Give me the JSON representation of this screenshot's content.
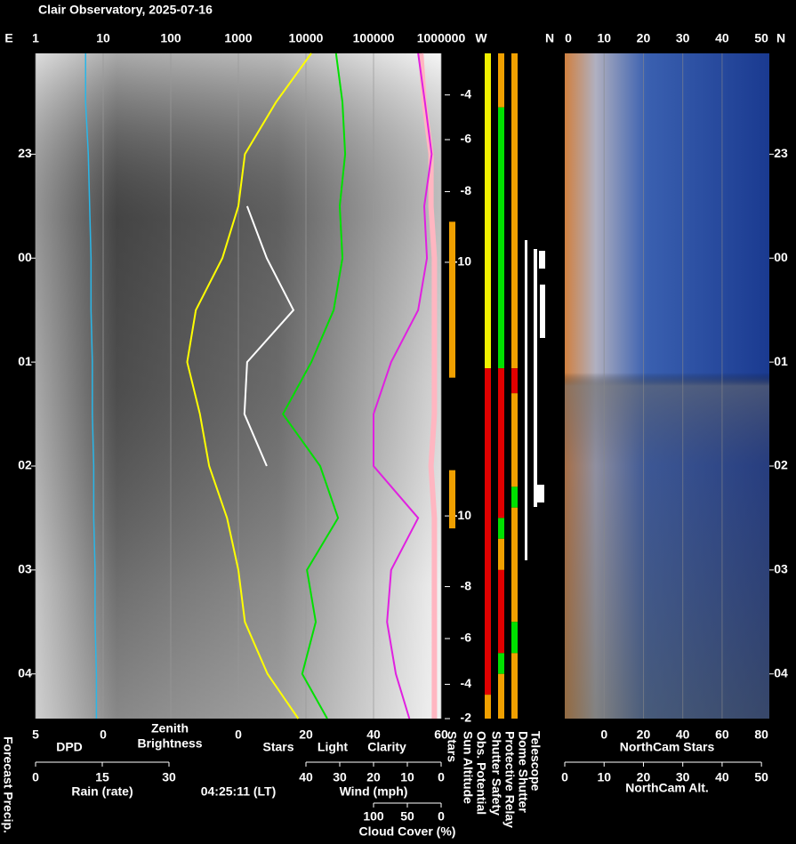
{
  "title": "Clair Observatory, 2025-07-16",
  "forecast_label": "Forecast Precip.",
  "time_label": "04:25:11 (LT)",
  "main": {
    "left_label": "E",
    "xlim": [
      1,
      1000000
    ],
    "log_x": true,
    "xticks": [
      1,
      10,
      100,
      1000,
      10000,
      100000,
      1000000
    ],
    "time_lim": [
      22.03,
      28.43
    ],
    "time_ticks": [
      {
        "value": 23,
        "label": "23"
      },
      {
        "value": 24,
        "label": "00"
      },
      {
        "value": 25,
        "label": "01"
      },
      {
        "value": 26,
        "label": "02"
      },
      {
        "value": 27,
        "label": "03"
      },
      {
        "value": 28,
        "label": "04"
      }
    ],
    "times": [
      22.03,
      22.5,
      23.0,
      23.5,
      24.0,
      24.5,
      25.0,
      25.5,
      26.0,
      26.5,
      27.0,
      27.5,
      28.0,
      28.43
    ]
  },
  "zenith": {
    "label": [
      "Zenith",
      "Brightness"
    ],
    "color": "#ffff00",
    "values": [
      12000,
      3600,
      1250,
      1000,
      580,
      235,
      175,
      270,
      370,
      680,
      1000,
      1250,
      2700,
      7700
    ]
  },
  "dpd": {
    "label": "DPD",
    "color": "#29b6e8",
    "lim": [
      5,
      0
    ],
    "ticks": [
      5,
      0
    ],
    "values": [
      1.3,
      1.3,
      1.1,
      1.0,
      0.9,
      0.9,
      0.8,
      0.8,
      0.7,
      0.7,
      0.6,
      0.6,
      0.5,
      0.5
    ]
  },
  "stars_light_clarity": {
    "lim": [
      0,
      60
    ],
    "ticks": [
      0,
      20,
      40,
      60
    ],
    "labels": [
      {
        "text": "Stars",
        "color": "#ffffff"
      },
      {
        "text": "Light",
        "color": "#ffff00"
      },
      {
        "text": "Clarity",
        "color": "#00e000"
      }
    ],
    "series": [
      {
        "color": "#ffffff",
        "values": [
          null,
          null,
          null,
          2.6,
          8.4,
          16.3,
          2.6,
          1.8,
          8.4,
          null,
          null,
          null,
          null,
          null
        ]
      },
      {
        "color": "#00e000",
        "values": [
          28.9,
          30.8,
          31.6,
          30.0,
          30.8,
          28.2,
          21.6,
          13.2,
          24.2,
          29.5,
          20.3,
          22.9,
          18.9,
          26.3
        ]
      }
    ]
  },
  "rain": {
    "label": "Rain (rate)",
    "color": "#29d0e8",
    "lim": [
      0,
      30
    ],
    "ticks": [
      0,
      15,
      30
    ]
  },
  "wind": {
    "label": "Wind (mph)",
    "color": "#ffb6c1",
    "lim": [
      40,
      0
    ],
    "ticks": [
      40,
      30,
      20,
      10,
      0
    ],
    "values": [
      6,
      5,
      3,
      3,
      2,
      2,
      2,
      2,
      3,
      2,
      2,
      2,
      2,
      2
    ]
  },
  "cloud": {
    "label": "Cloud Cover (%)",
    "color": "#e020e0",
    "lim": [
      100,
      0
    ],
    "ticks": [
      100,
      50,
      0
    ],
    "values": [
      34,
      24,
      14,
      25,
      21,
      34,
      74,
      100,
      100,
      34,
      74,
      80,
      67,
      47
    ]
  },
  "sun_altitude": [
    {
      "altitude": -4,
      "time": 22.43
    },
    {
      "altitude": -6,
      "time": 22.86
    },
    {
      "altitude": -8,
      "time": 23.36
    },
    {
      "altitude": -10,
      "time": 24.04
    },
    {
      "altitude": -10,
      "time": 26.48
    },
    {
      "altitude": -8,
      "time": 27.16
    },
    {
      "altitude": -6,
      "time": 27.66
    },
    {
      "altitude": -4,
      "time": 28.1
    },
    {
      "altitude": -2,
      "time": 28.43
    }
  ],
  "status": {
    "left_label": "W",
    "right_label": "N",
    "labels": [
      "Stars",
      "Sun Altitude",
      "Obs. Potential",
      "Shutter Safety",
      "Protective Relay",
      "Dome Shutter",
      "Telescope"
    ],
    "bars": [
      {
        "segments": [
          [
            23.65,
            25.15,
            "#f0a000"
          ],
          [
            26.04,
            26.6,
            "#f0a000"
          ]
        ]
      },
      {
        "segments": [
          [
            22.03,
            25.06,
            "#f0f000"
          ],
          [
            25.06,
            28.2,
            "#e00000"
          ],
          [
            28.2,
            28.43,
            "#f0a000"
          ]
        ]
      },
      {
        "segments": [
          [
            22.03,
            22.55,
            "#f0a000"
          ],
          [
            22.55,
            25.06,
            "#00e000"
          ],
          [
            25.06,
            26.5,
            "#e00000"
          ],
          [
            26.5,
            26.7,
            "#00e000"
          ],
          [
            26.7,
            27.0,
            "#f0a000"
          ],
          [
            27.0,
            27.8,
            "#e00000"
          ],
          [
            27.8,
            28.0,
            "#00e000"
          ],
          [
            28.0,
            28.43,
            "#f0a000"
          ]
        ]
      },
      {
        "segments": [
          [
            22.03,
            25.06,
            "#f0a000"
          ],
          [
            25.06,
            25.3,
            "#e00000"
          ],
          [
            25.3,
            26.2,
            "#f0a000"
          ],
          [
            26.2,
            26.4,
            "#00e000"
          ],
          [
            26.4,
            27.5,
            "#f0a000"
          ],
          [
            27.5,
            27.8,
            "#00e000"
          ],
          [
            27.8,
            28.43,
            "#f0a000"
          ]
        ]
      }
    ]
  },
  "northcam_stars": {
    "label": "NorthCam Stars",
    "lim": [
      -20,
      84
    ],
    "ticks": [
      0,
      20,
      40,
      60,
      80
    ]
  },
  "northcam_alt": {
    "label": "NorthCam Alt.",
    "top_label": "N",
    "lim": [
      0,
      52
    ],
    "ticks": [
      0,
      10,
      20,
      30,
      40,
      50
    ]
  }
}
